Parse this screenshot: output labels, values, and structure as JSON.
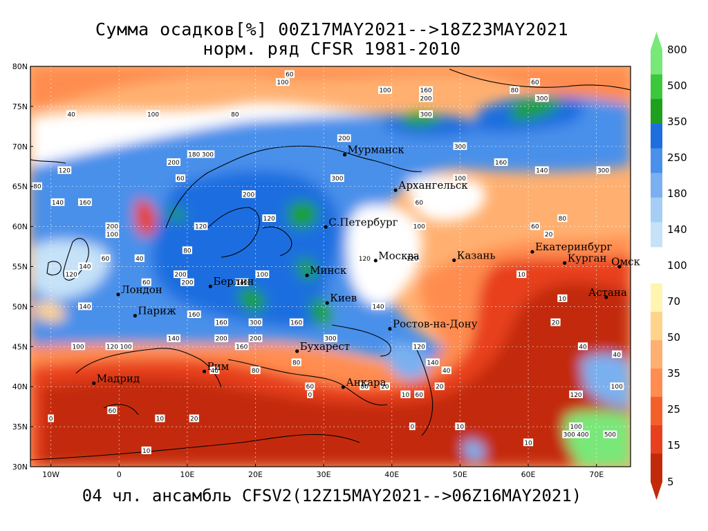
{
  "title": "Сумма осадков[%] 00Z17MAY2021-->18Z23MAY2021",
  "subtitle": "норм. ряд CFSR 1981-2010",
  "footer": "04 чл. ансамбль CFSV2(12Z15MAY2021-->06Z16MAY2021)",
  "lat_labels": [
    "80N",
    "75N",
    "70N",
    "65N",
    "60N",
    "55N",
    "50N",
    "45N",
    "40N",
    "35N",
    "30N"
  ],
  "lon_labels": [
    "10W",
    "0",
    "10E",
    "20E",
    "30E",
    "40E",
    "50E",
    "60E",
    "70E"
  ],
  "colorbar_labels": [
    "800",
    "500",
    "350",
    "250",
    "180",
    "140",
    "100",
    "70",
    "50",
    "35",
    "25",
    "15",
    "5"
  ],
  "colorbar_colors": [
    "#78e878",
    "#3cc83c",
    "#1ea01e",
    "#1e6ee0",
    "#4a90ea",
    "#7ab0f0",
    "#a6cdf5",
    "#c6e2f8",
    "#fff5b0",
    "#ffd38a",
    "#ffb070",
    "#ff8c50",
    "#f5602a",
    "#e8401e",
    "#c32a0a"
  ],
  "cities": [
    {
      "name": "Мурманск",
      "lat": 68.97,
      "lon": 33.08
    },
    {
      "name": "Архангельск",
      "lat": 64.54,
      "lon": 40.54
    },
    {
      "name": "С.Петербург",
      "lat": 59.94,
      "lon": 30.31
    },
    {
      "name": "Москва",
      "lat": 55.75,
      "lon": 37.62
    },
    {
      "name": "Казань",
      "lat": 55.79,
      "lon": 49.12
    },
    {
      "name": "Екатеринбург",
      "lat": 56.84,
      "lon": 60.6
    },
    {
      "name": "Курган",
      "lat": 55.44,
      "lon": 65.34
    },
    {
      "name": "Омск",
      "lat": 54.99,
      "lon": 73.37
    },
    {
      "name": "Астана",
      "lat": 51.17,
      "lon": 71.43
    },
    {
      "name": "Минск",
      "lat": 53.9,
      "lon": 27.56
    },
    {
      "name": "Киев",
      "lat": 50.45,
      "lon": 30.52
    },
    {
      "name": "Берлин",
      "lat": 52.52,
      "lon": 13.4
    },
    {
      "name": "Лондон",
      "lat": 51.51,
      "lon": -0.13
    },
    {
      "name": "Париж",
      "lat": 48.86,
      "lon": 2.35
    },
    {
      "name": "Ростов-на-Дону",
      "lat": 47.23,
      "lon": 39.72
    },
    {
      "name": "Бухарест",
      "lat": 44.43,
      "lon": 26.1
    },
    {
      "name": "Рим",
      "lat": 41.9,
      "lon": 12.5
    },
    {
      "name": "Мадрид",
      "lat": 40.42,
      "lon": -3.7
    },
    {
      "name": "Анкара",
      "lat": 39.93,
      "lon": 32.86
    }
  ],
  "contour_labels": [
    {
      "v": "40",
      "lat": 74,
      "lon": -7
    },
    {
      "v": "100",
      "lat": 74,
      "lon": 5
    },
    {
      "v": "80",
      "lat": 74,
      "lon": 17
    },
    {
      "v": "100",
      "lat": 78,
      "lon": 24
    },
    {
      "v": "60",
      "lat": 79,
      "lon": 25
    },
    {
      "v": "100",
      "lat": 77,
      "lon": 39
    },
    {
      "v": "160",
      "lat": 77,
      "lon": 45
    },
    {
      "v": "200",
      "lat": 76,
      "lon": 45
    },
    {
      "v": "300",
      "lat": 74,
      "lon": 45
    },
    {
      "v": "80",
      "lat": 77,
      "lon": 58
    },
    {
      "v": "60",
      "lat": 78,
      "lon": 61
    },
    {
      "v": "300",
      "lat": 76,
      "lon": 62
    },
    {
      "v": "200",
      "lat": 71,
      "lon": 33
    },
    {
      "v": "300",
      "lat": 70,
      "lon": 50
    },
    {
      "v": "160",
      "lat": 68,
      "lon": 56
    },
    {
      "v": "140",
      "lat": 67,
      "lon": 62
    },
    {
      "v": "300",
      "lat": 67,
      "lon": 71
    },
    {
      "v": "120",
      "lat": 67,
      "lon": -8
    },
    {
      "v": "200",
      "lat": 68,
      "lon": 8
    },
    {
      "v": "60",
      "lat": 66,
      "lon": 9
    },
    {
      "v": "80",
      "lat": 65,
      "lon": -12
    },
    {
      "v": "140",
      "lat": 63,
      "lon": -9
    },
    {
      "v": "160",
      "lat": 63,
      "lon": -5
    },
    {
      "v": "200",
      "lat": 64,
      "lon": 19
    },
    {
      "v": "120",
      "lat": 61,
      "lon": 22
    },
    {
      "v": "120",
      "lat": 60,
      "lon": 12
    },
    {
      "v": "200",
      "lat": 60,
      "lon": -1
    },
    {
      "v": "100",
      "lat": 59,
      "lon": -1
    },
    {
      "v": "60",
      "lat": 56,
      "lon": -2
    },
    {
      "v": "40",
      "lat": 56,
      "lon": 3
    },
    {
      "v": "80",
      "lat": 57,
      "lon": 10
    },
    {
      "v": "100",
      "lat": 54,
      "lon": 21
    },
    {
      "v": "60",
      "lat": 53,
      "lon": 4
    },
    {
      "v": "200",
      "lat": 53,
      "lon": 10
    },
    {
      "v": "160",
      "lat": 48,
      "lon": 15
    },
    {
      "v": "200",
      "lat": 46,
      "lon": 15
    },
    {
      "v": "160",
      "lat": 45,
      "lon": 18
    },
    {
      "v": "300",
      "lat": 48,
      "lon": 20
    },
    {
      "v": "200",
      "lat": 46,
      "lon": 20
    },
    {
      "v": "160",
      "lat": 48,
      "lon": 26
    },
    {
      "v": "300",
      "lat": 46,
      "lon": 31
    },
    {
      "v": "140",
      "lat": 50,
      "lon": 38
    },
    {
      "v": "120",
      "lat": 56,
      "lon": 36
    },
    {
      "v": "120",
      "lat": 56,
      "lon": 43
    },
    {
      "v": "300",
      "lat": 66,
      "lon": 32
    },
    {
      "v": "100",
      "lat": 60,
      "lon": 44
    },
    {
      "v": "60",
      "lat": 63,
      "lon": 44
    },
    {
      "v": "100",
      "lat": 66,
      "lon": 50
    },
    {
      "v": "80",
      "lat": 61,
      "lon": 65
    },
    {
      "v": "60",
      "lat": 60,
      "lon": 61
    },
    {
      "v": "20",
      "lat": 59,
      "lon": 63
    },
    {
      "v": "10",
      "lat": 54,
      "lon": 59
    },
    {
      "v": "10",
      "lat": 51,
      "lon": 65
    },
    {
      "v": "20",
      "lat": 48,
      "lon": 64
    },
    {
      "v": "40",
      "lat": 45,
      "lon": 68
    },
    {
      "v": "40",
      "lat": 44,
      "lon": 73
    },
    {
      "v": "100",
      "lat": 45,
      "lon": -6
    },
    {
      "v": "120",
      "lat": 45,
      "lon": -1
    },
    {
      "v": "100",
      "lat": 45,
      "lon": 1
    },
    {
      "v": "140",
      "lat": 46,
      "lon": 8
    },
    {
      "v": "80",
      "lat": 43,
      "lon": 26
    },
    {
      "v": "120",
      "lat": 45,
      "lon": 44
    },
    {
      "v": "140",
      "lat": 43,
      "lon": 46
    },
    {
      "v": "40",
      "lat": 42,
      "lon": 48
    },
    {
      "v": "20",
      "lat": 40,
      "lon": 39
    },
    {
      "v": "80",
      "lat": 40,
      "lon": 36
    },
    {
      "v": "10",
      "lat": 39,
      "lon": 42
    },
    {
      "v": "20",
      "lat": 40,
      "lon": 47
    },
    {
      "v": "60",
      "lat": 39,
      "lon": 44
    },
    {
      "v": "10",
      "lat": 35,
      "lon": 50
    },
    {
      "v": "10",
      "lat": 33,
      "lon": 60
    },
    {
      "v": "0",
      "lat": 35,
      "lon": 43
    },
    {
      "v": "0",
      "lat": 36,
      "lon": -10
    },
    {
      "v": "10",
      "lat": 32,
      "lon": 4
    },
    {
      "v": "10",
      "lat": 36,
      "lon": 6
    },
    {
      "v": "20",
      "lat": 36,
      "lon": 11
    },
    {
      "v": "60",
      "lat": 37,
      "lon": -1
    },
    {
      "v": "0",
      "lat": 39,
      "lon": 28
    },
    {
      "v": "60",
      "lat": 40,
      "lon": 28
    },
    {
      "v": "40",
      "lat": 42,
      "lon": 14
    },
    {
      "v": "80",
      "lat": 42,
      "lon": 20
    },
    {
      "v": "120",
      "lat": 39,
      "lon": 67
    },
    {
      "v": "100",
      "lat": 35,
      "lon": 67
    },
    {
      "v": "300",
      "lat": 34,
      "lon": 66
    },
    {
      "v": "400",
      "lat": 34,
      "lon": 68
    },
    {
      "v": "500",
      "lat": 34,
      "lon": 72
    },
    {
      "v": "100",
      "lat": 40,
      "lon": 73
    },
    {
      "v": "140",
      "lat": 55,
      "lon": -5
    },
    {
      "v": "120",
      "lat": 54,
      "lon": -7
    },
    {
      "v": "140",
      "lat": 50,
      "lon": -5
    },
    {
      "v": "200",
      "lat": 54,
      "lon": 9
    },
    {
      "v": "160",
      "lat": 49,
      "lon": 11
    },
    {
      "v": "140",
      "lat": 53,
      "lon": 18
    },
    {
      "v": "180",
      "lat": 69,
      "lon": 11
    },
    {
      "v": "300",
      "lat": 69,
      "lon": 13
    }
  ]
}
